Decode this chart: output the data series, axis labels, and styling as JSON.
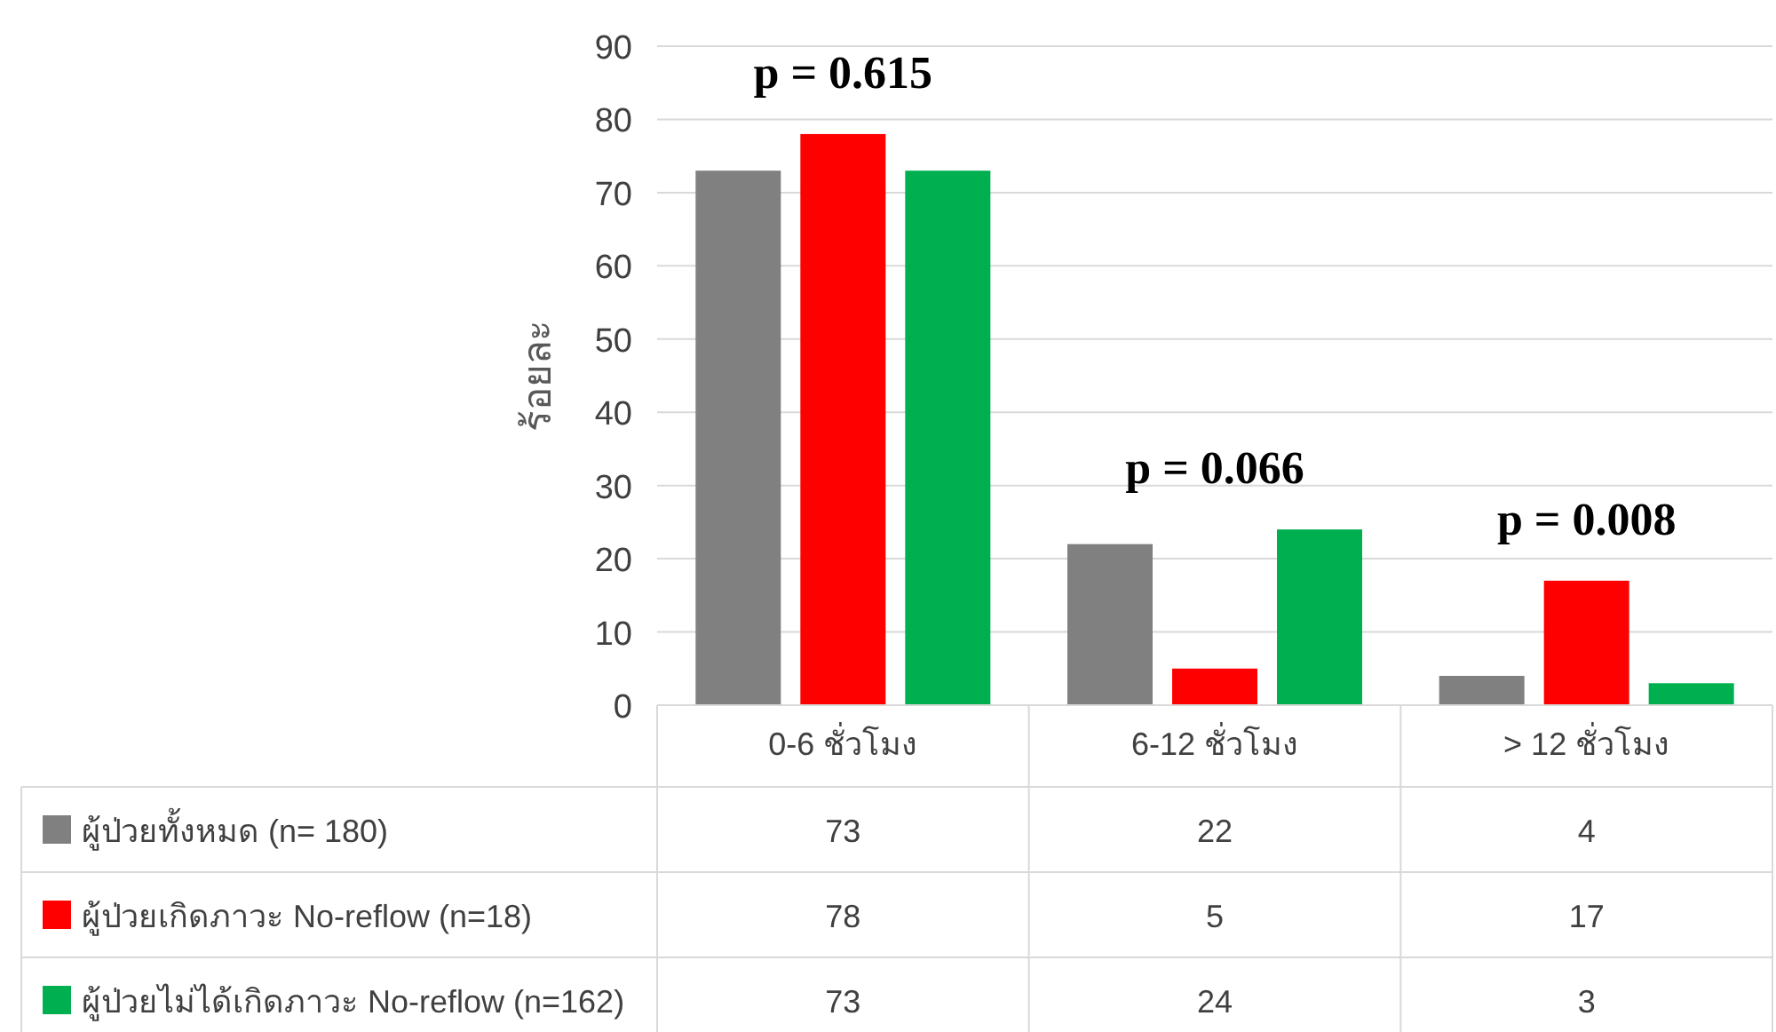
{
  "chart_data": {
    "type": "bar",
    "ylabel": "ร้อยละ",
    "categories": [
      "0-6 ชั่วโมง",
      "6-12 ชั่วโมง",
      "> 12 ชั่วโมง"
    ],
    "series": [
      {
        "name": "ผู้ป่วยทั้งหมด (n= 180)",
        "color": "#808080",
        "values": [
          73,
          22,
          4
        ]
      },
      {
        "name": "ผู้ป่วยเกิดภาวะ No-reflow (n=18)",
        "color": "#ff0000",
        "values": [
          78,
          5,
          17
        ]
      },
      {
        "name": "ผู้ป่วยไม่ได้เกิดภาวะ No-reflow (n=162)",
        "color": "#00b050",
        "values": [
          73,
          24,
          3
        ]
      }
    ],
    "ylim": [
      0,
      90
    ],
    "yticks": [
      0,
      10,
      20,
      30,
      40,
      50,
      60,
      70,
      80,
      90
    ],
    "grid": "y",
    "legend": "bottom",
    "data_labels": true,
    "annotations": [
      "p = 0.615",
      "p = 0.066",
      "p = 0.008"
    ]
  }
}
